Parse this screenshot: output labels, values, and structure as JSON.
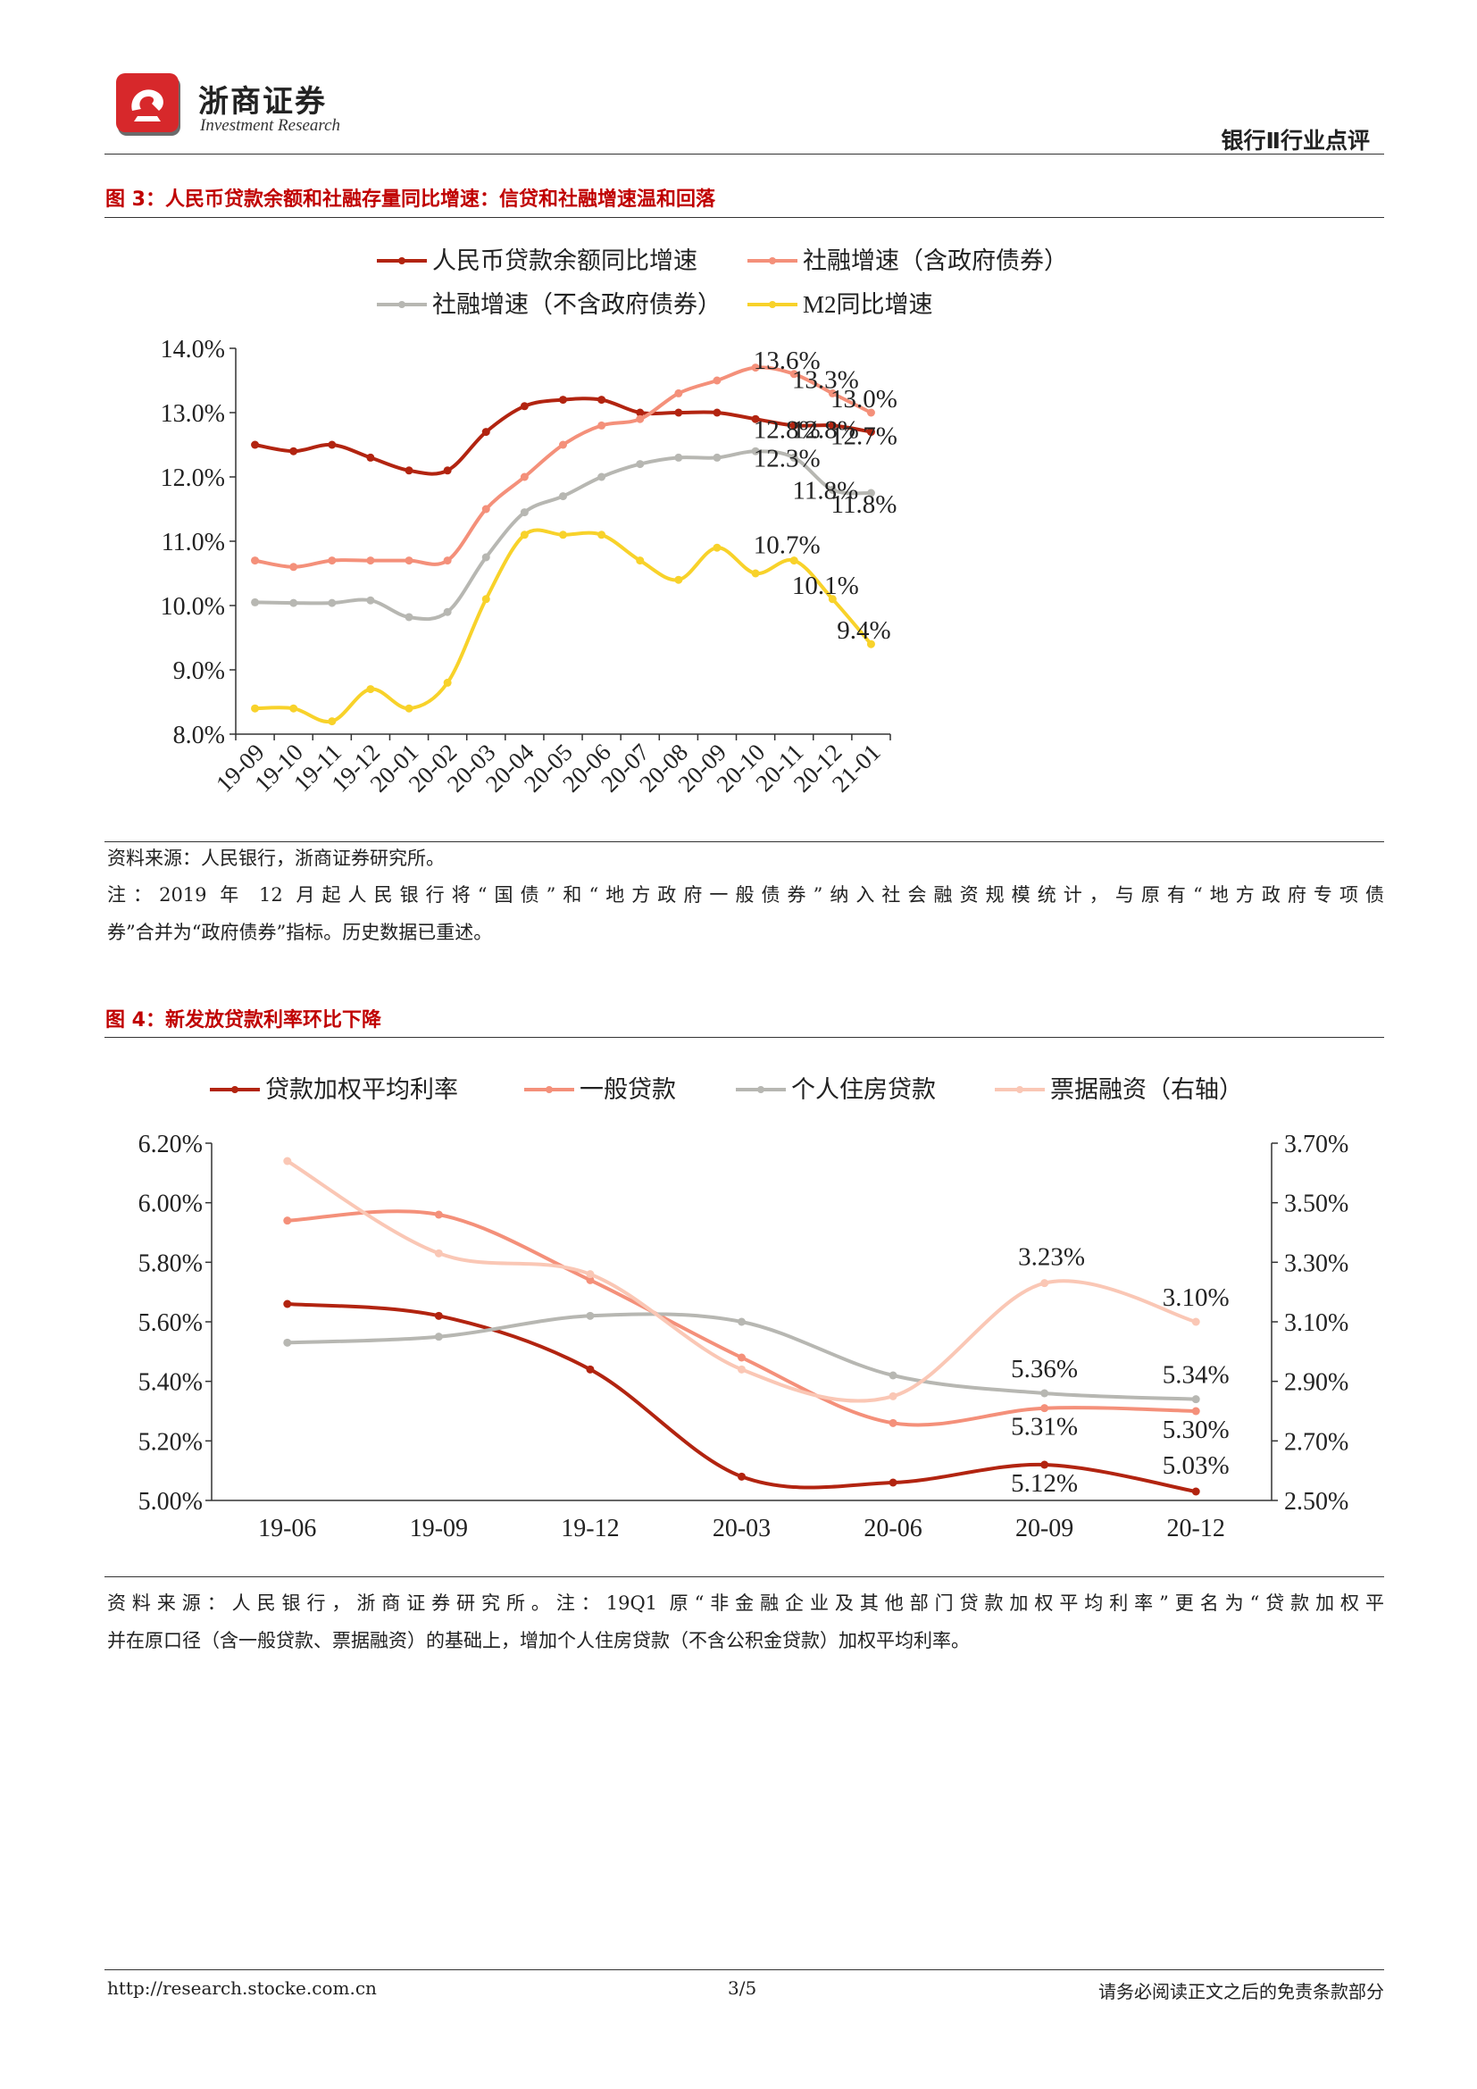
{
  "header": {
    "logo_cn": "浙商证券",
    "logo_en": "Investment Research",
    "section_label": "银行Ⅱ行业点评"
  },
  "figure3": {
    "title": "图 3：人民币贷款余额和社融存量同比增速：信贷和社融增速温和回落",
    "source": "资料来源：人民银行，浙商证券研究所。",
    "note_line1": "注：2019 年 12 月起人民银行将“国债”和“地方政府一般债券”纳入社会融资规模统计，与原有“地方政府专项债",
    "note_line2": "券”合并为“政府债券”指标。历史数据已重述。"
  },
  "figure4": {
    "title": "图 4：新发放贷款利率环比下降",
    "source_line1": "资料来源：人民银行，浙商证券研究所。注：19Q1 原“非金融企业及其他部门贷款加权平均利率”更名为“贷款加权平",
    "source_line2": "并在原口径（含一般贷款、票据融资）的基础上，增加个人住房贷款（不含公积金贷款）加权平均利率。"
  },
  "footer": {
    "url": "http://research.stocke.com.cn",
    "page": "3/5",
    "disclaimer": "请务必阅读正文之后的免责条款部分"
  },
  "chart_data": [
    {
      "type": "line",
      "categories": [
        "19-09",
        "19-10",
        "19-11",
        "19-12",
        "20-01",
        "20-02",
        "20-03",
        "20-04",
        "20-05",
        "20-06",
        "20-07",
        "20-08",
        "20-09",
        "20-10",
        "20-11",
        "20-12",
        "21-01"
      ],
      "ylim": [
        8.0,
        14.0
      ],
      "yticks": [
        "8.0%",
        "9.0%",
        "10.0%",
        "11.0%",
        "12.0%",
        "13.0%",
        "14.0%"
      ],
      "legend_position": "top",
      "grid": false,
      "series": [
        {
          "name": "人民币贷款余额同比增速",
          "color": "#b22410",
          "values": [
            12.5,
            12.4,
            12.5,
            12.3,
            12.1,
            12.1,
            12.7,
            13.1,
            13.2,
            13.2,
            13.0,
            13.0,
            13.0,
            12.9,
            12.8,
            12.8,
            12.7
          ]
        },
        {
          "name": "社融增速（含政府债券）",
          "color": "#f4907a",
          "values": [
            10.7,
            10.6,
            10.7,
            10.7,
            10.7,
            10.7,
            11.5,
            12.0,
            12.5,
            12.8,
            12.9,
            13.3,
            13.5,
            13.7,
            13.6,
            13.3,
            13.0
          ]
        },
        {
          "name": "社融增速（不含政府债券）",
          "color": "#b7b7b2",
          "values": [
            10.05,
            10.04,
            10.04,
            10.08,
            9.82,
            9.9,
            10.75,
            11.45,
            11.7,
            12.0,
            12.2,
            12.3,
            12.3,
            12.4,
            12.3,
            11.8,
            11.75
          ]
        },
        {
          "name": "M2同比增速",
          "color": "#f8d22a",
          "values": [
            8.4,
            8.4,
            8.2,
            8.7,
            8.4,
            8.8,
            10.1,
            11.1,
            11.1,
            11.1,
            10.7,
            10.4,
            10.9,
            10.5,
            10.7,
            10.1,
            9.4
          ]
        }
      ],
      "annotations": [
        {
          "text": "13.6%",
          "x": "20-11",
          "y": 13.6
        },
        {
          "text": "13.3%",
          "x": "20-12",
          "y": 13.3
        },
        {
          "text": "13.0%",
          "x": "21-01",
          "y": 13.0
        },
        {
          "text": "12.8%",
          "x": "20-11",
          "y": 12.8
        },
        {
          "text": "12.8%",
          "x": "20-12",
          "y": 12.8
        },
        {
          "text": "12.7%",
          "x": "21-01",
          "y": 12.7
        },
        {
          "text": "12.3%",
          "x": "20-11",
          "y": 12.3
        },
        {
          "text": "11.8%",
          "x": "20-12",
          "y": 11.8
        },
        {
          "text": "11.8%",
          "x": "21-01",
          "y": 11.75
        },
        {
          "text": "10.7%",
          "x": "20-11",
          "y": 10.7
        },
        {
          "text": "10.1%",
          "x": "20-12",
          "y": 10.1
        },
        {
          "text": "9.4%",
          "x": "21-01",
          "y": 9.4
        }
      ]
    },
    {
      "type": "line",
      "categories": [
        "19-06",
        "19-09",
        "19-12",
        "20-03",
        "20-06",
        "20-09",
        "20-12"
      ],
      "ylim": [
        5.0,
        6.2
      ],
      "yticks": [
        "5.00%",
        "5.20%",
        "5.40%",
        "5.60%",
        "5.80%",
        "6.00%",
        "6.20%"
      ],
      "y2lim": [
        2.5,
        3.7
      ],
      "y2ticks": [
        "2.50%",
        "2.70%",
        "2.90%",
        "3.10%",
        "3.30%",
        "3.50%",
        "3.70%"
      ],
      "legend_position": "top",
      "grid": false,
      "series": [
        {
          "name": "贷款加权平均利率",
          "color": "#b22410",
          "axis": "left",
          "values": [
            5.66,
            5.62,
            5.44,
            5.08,
            5.06,
            5.12,
            5.03
          ]
        },
        {
          "name": "一般贷款",
          "color": "#f4907a",
          "axis": "left",
          "values": [
            5.94,
            5.96,
            5.74,
            5.48,
            5.26,
            5.31,
            5.3
          ]
        },
        {
          "name": "个人住房贷款",
          "color": "#b7b7b2",
          "axis": "left",
          "values": [
            5.53,
            5.55,
            5.62,
            5.6,
            5.42,
            5.36,
            5.34
          ]
        },
        {
          "name": "票据融资（右轴）",
          "color": "#fac7b5",
          "axis": "right",
          "values": [
            3.64,
            3.33,
            3.26,
            2.94,
            2.85,
            3.23,
            3.1
          ]
        }
      ],
      "annotations": [
        {
          "text": "3.23%",
          "x": "20-09",
          "axis": "right",
          "y": 3.23
        },
        {
          "text": "3.10%",
          "x": "20-12",
          "axis": "right",
          "y": 3.1
        },
        {
          "text": "5.36%",
          "x": "20-09",
          "axis": "left",
          "y": 5.36
        },
        {
          "text": "5.34%",
          "x": "20-12",
          "axis": "left",
          "y": 5.34
        },
        {
          "text": "5.31%",
          "x": "20-09",
          "axis": "left",
          "y": 5.31
        },
        {
          "text": "5.30%",
          "x": "20-12",
          "axis": "left",
          "y": 5.3
        },
        {
          "text": "5.12%",
          "x": "20-09",
          "axis": "left",
          "y": 5.12
        },
        {
          "text": "5.03%",
          "x": "20-12",
          "axis": "left",
          "y": 5.03
        }
      ]
    }
  ]
}
